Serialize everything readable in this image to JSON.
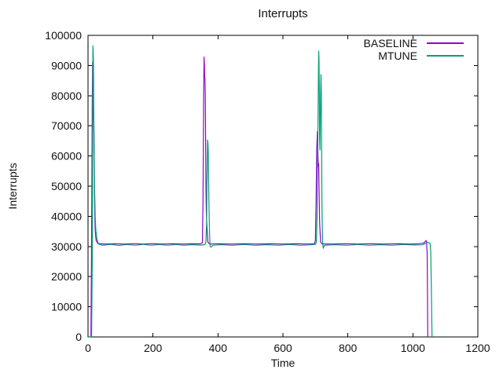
{
  "chart_data": {
    "type": "line",
    "title": "Interrupts",
    "xlabel": "Time",
    "ylabel": "Interrupts",
    "xlim": [
      0,
      1200
    ],
    "ylim": [
      0,
      100000
    ],
    "xticks": [
      0,
      200,
      400,
      600,
      800,
      1000,
      1200
    ],
    "yticks": [
      0,
      10000,
      20000,
      30000,
      40000,
      50000,
      60000,
      70000,
      80000,
      90000,
      100000
    ],
    "grid": false,
    "background": "#ffffff",
    "axis_color": "#000000",
    "legend": {
      "position": "top-right-inside",
      "entries": [
        "BASELINE",
        "MTUNE"
      ]
    },
    "series": [
      {
        "name": "BASELINE",
        "color": "#9400d3",
        "points": [
          [
            0,
            0
          ],
          [
            9,
            0
          ],
          [
            11,
            30000
          ],
          [
            13,
            78000
          ],
          [
            14,
            91000
          ],
          [
            15,
            88000
          ],
          [
            16,
            84000
          ],
          [
            17,
            73000
          ],
          [
            18,
            72500
          ],
          [
            19,
            60000
          ],
          [
            20,
            45000
          ],
          [
            22,
            35500
          ],
          [
            25,
            32000
          ],
          [
            30,
            31000
          ],
          [
            50,
            30800
          ],
          [
            80,
            30900
          ],
          [
            110,
            30800
          ],
          [
            140,
            30900
          ],
          [
            170,
            30800
          ],
          [
            200,
            30900
          ],
          [
            230,
            30800
          ],
          [
            260,
            30900
          ],
          [
            290,
            30800
          ],
          [
            320,
            30900
          ],
          [
            345,
            30850
          ],
          [
            352,
            31200
          ],
          [
            354,
            45000
          ],
          [
            356,
            78000
          ],
          [
            357,
            92800
          ],
          [
            358,
            90500
          ],
          [
            359,
            86000
          ],
          [
            360,
            85800
          ],
          [
            361,
            80000
          ],
          [
            362,
            65000
          ],
          [
            363,
            50000
          ],
          [
            364,
            42000
          ],
          [
            366,
            36500
          ],
          [
            369,
            31500
          ],
          [
            374,
            30800
          ],
          [
            400,
            30900
          ],
          [
            440,
            30800
          ],
          [
            480,
            30900
          ],
          [
            520,
            30800
          ],
          [
            560,
            30900
          ],
          [
            600,
            30800
          ],
          [
            640,
            30900
          ],
          [
            675,
            30800
          ],
          [
            697,
            30900
          ],
          [
            700,
            32000
          ],
          [
            702,
            45000
          ],
          [
            704,
            62000
          ],
          [
            706,
            68000
          ],
          [
            707,
            66000
          ],
          [
            708,
            60000
          ],
          [
            709,
            56500
          ],
          [
            710,
            57500
          ],
          [
            711,
            50000
          ],
          [
            713,
            38000
          ],
          [
            716,
            31500
          ],
          [
            720,
            30850
          ],
          [
            750,
            30800
          ],
          [
            790,
            30900
          ],
          [
            830,
            30800
          ],
          [
            870,
            30900
          ],
          [
            910,
            30800
          ],
          [
            950,
            30900
          ],
          [
            990,
            30800
          ],
          [
            1020,
            30900
          ],
          [
            1035,
            31200
          ],
          [
            1040,
            32000
          ],
          [
            1042,
            31500
          ],
          [
            1044,
            28000
          ],
          [
            1045,
            15000
          ],
          [
            1046,
            0
          ]
        ]
      },
      {
        "name": "MTUNE",
        "color": "#009e73",
        "points": [
          [
            0,
            0
          ],
          [
            11,
            0
          ],
          [
            13,
            25000
          ],
          [
            14,
            55000
          ],
          [
            15,
            96500
          ],
          [
            16,
            94000
          ],
          [
            17,
            90000
          ],
          [
            18,
            70000
          ],
          [
            19,
            60000
          ],
          [
            20,
            50000
          ],
          [
            22,
            40000
          ],
          [
            24,
            35500
          ],
          [
            27,
            32500
          ],
          [
            32,
            30800
          ],
          [
            45,
            30400
          ],
          [
            70,
            30700
          ],
          [
            95,
            30350
          ],
          [
            120,
            30650
          ],
          [
            145,
            30400
          ],
          [
            170,
            30700
          ],
          [
            195,
            30400
          ],
          [
            220,
            30650
          ],
          [
            245,
            30400
          ],
          [
            270,
            30650
          ],
          [
            295,
            30400
          ],
          [
            320,
            30600
          ],
          [
            345,
            30450
          ],
          [
            360,
            30600
          ],
          [
            363,
            31500
          ],
          [
            365,
            38000
          ],
          [
            366,
            50000
          ],
          [
            368,
            65300
          ],
          [
            369,
            64500
          ],
          [
            370,
            62000
          ],
          [
            371,
            55000
          ],
          [
            372,
            45000
          ],
          [
            374,
            34000
          ],
          [
            376,
            30000
          ],
          [
            379,
            29800
          ],
          [
            383,
            30400
          ],
          [
            410,
            30600
          ],
          [
            445,
            30400
          ],
          [
            480,
            30650
          ],
          [
            515,
            30400
          ],
          [
            550,
            30600
          ],
          [
            585,
            30400
          ],
          [
            620,
            30650
          ],
          [
            655,
            30400
          ],
          [
            685,
            30550
          ],
          [
            700,
            30700
          ],
          [
            703,
            31500
          ],
          [
            705,
            40000
          ],
          [
            707,
            60000
          ],
          [
            709,
            85000
          ],
          [
            710,
            94800
          ],
          [
            711,
            92000
          ],
          [
            712,
            80000
          ],
          [
            713,
            65000
          ],
          [
            714,
            62000
          ],
          [
            715,
            70000
          ],
          [
            716,
            80000
          ],
          [
            717,
            87000
          ],
          [
            718,
            82000
          ],
          [
            719,
            65000
          ],
          [
            720,
            45000
          ],
          [
            722,
            32000
          ],
          [
            724,
            29400
          ],
          [
            728,
            30400
          ],
          [
            760,
            30600
          ],
          [
            795,
            30400
          ],
          [
            830,
            30650
          ],
          [
            865,
            30400
          ],
          [
            900,
            30600
          ],
          [
            935,
            30400
          ],
          [
            970,
            30650
          ],
          [
            1005,
            30500
          ],
          [
            1030,
            30550
          ],
          [
            1038,
            31000
          ],
          [
            1045,
            31400
          ],
          [
            1050,
            31200
          ],
          [
            1053,
            31000
          ],
          [
            1055,
            28000
          ],
          [
            1057,
            15000
          ],
          [
            1059,
            0
          ]
        ]
      }
    ]
  }
}
